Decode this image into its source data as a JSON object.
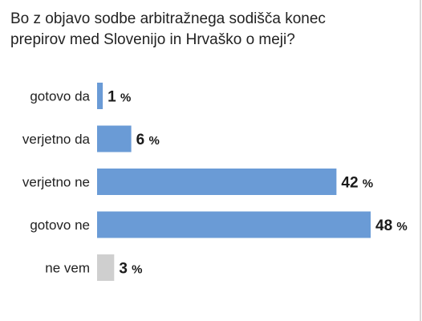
{
  "title_lines": [
    "Bo z objavo sodbe arbitražnega sodišča konec",
    "prepirov med Slovenijo in Hrvaško o meji?"
  ],
  "colors": {
    "bar": "#6a9bd6",
    "bar_muted": "#cfcfcf"
  },
  "chart_data": {
    "type": "bar",
    "orientation": "horizontal",
    "categories": [
      "gotovo da",
      "verjetno da",
      "verjetno ne",
      "gotovo ne",
      "ne vem"
    ],
    "values": [
      1,
      6,
      42,
      48,
      3
    ],
    "value_labels": [
      "1 %",
      "6 %",
      "42 %",
      "48 %",
      "3 %"
    ],
    "bar_colors": [
      "#6a9bd6",
      "#6a9bd6",
      "#6a9bd6",
      "#6a9bd6",
      "#cfcfcf"
    ],
    "xlim": [
      0,
      48
    ],
    "grid": false,
    "legend": "none"
  }
}
